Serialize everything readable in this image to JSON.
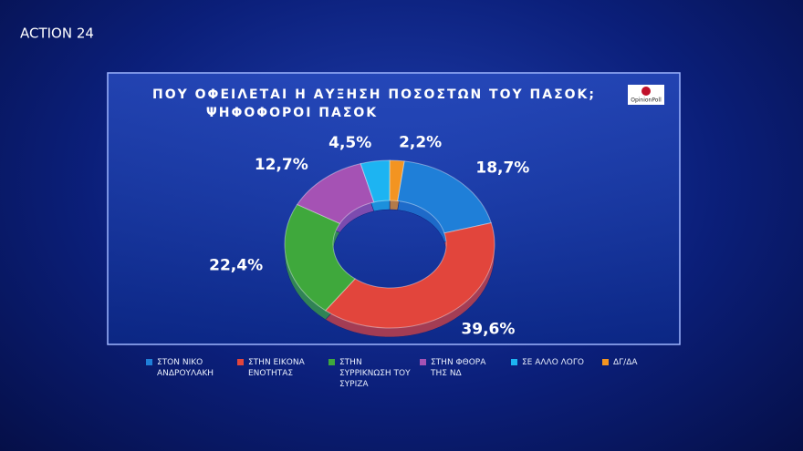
{
  "channel_logo": "ACTION 24",
  "poll_logo": "OpinionPoll",
  "chart_data": {
    "type": "donut",
    "title": "ΠΟΥ ΟΦΕΙΛΕΤΑΙ Η ΑΥΞΗΣΗ ΠΟΣΟΣΤΩΝ ΤΟΥ ΠΑΣΟΚ;",
    "subtitle": "ΨΗΦΟΦΟΡΟΙ ΠΑΣΟΚ",
    "categories": [
      "ΣΤΟΝ ΝΙΚΟ ΑΝΔΡΟΥΛΑΚΗ",
      "ΣΤΗΝ ΕΙΚΟΝΑ ΕΝΟΤΗΤΑΣ",
      "ΣΤΗΝ ΣΥΡΡΙΚΝΩΣΗ ΤΟΥ ΣΥΡΙΖΑ",
      "ΣΤΗΝ ΦΘΟΡΑ ΤΗΣ ΝΔ",
      "ΣΕ ΑΛΛΟ ΛΟΓΟ",
      "ΔΓ/ΔΑ"
    ],
    "values": [
      18.7,
      39.6,
      22.4,
      12.7,
      4.5,
      2.2
    ],
    "value_labels": [
      "18,7%",
      "39,6%",
      "22,4%",
      "12,7%",
      "4,5%",
      "2,2%"
    ],
    "colors": [
      "#1f7fd8",
      "#e2453c",
      "#3fa83c",
      "#a552b4",
      "#1db4f2",
      "#f39421"
    ]
  }
}
